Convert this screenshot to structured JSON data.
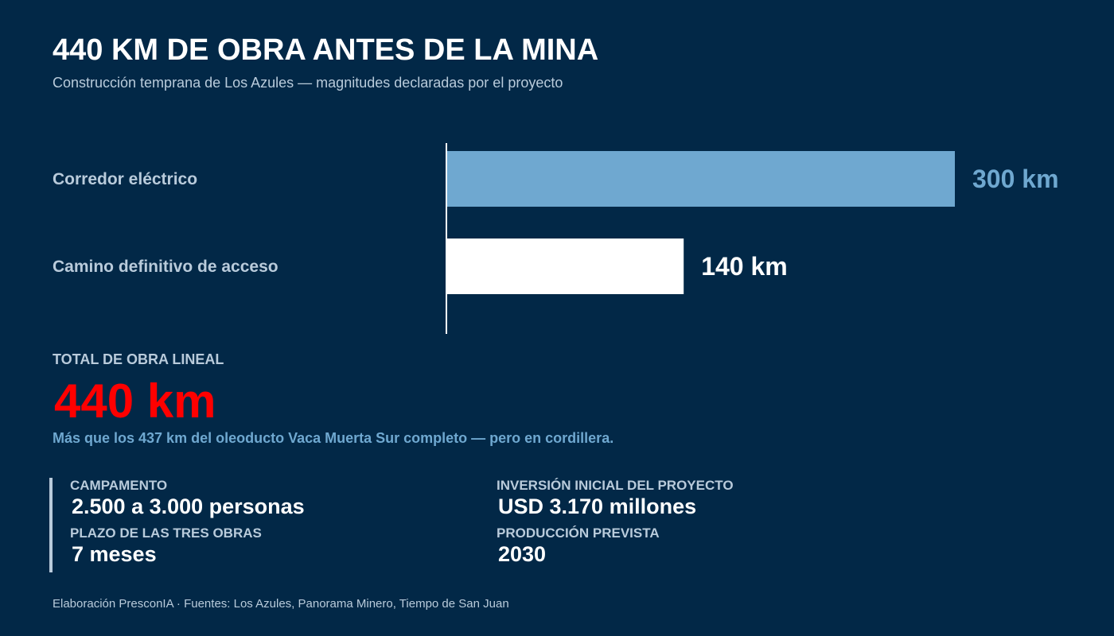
{
  "title": "440 KM DE OBRA ANTES DE LA MINA",
  "subtitle": "Construcción temprana de Los Azules — magnitudes declaradas por el proyecto",
  "chart_data": {
    "type": "bar",
    "orientation": "horizontal",
    "categories": [
      "Corredor eléctrico",
      "Camino definitivo de acceso"
    ],
    "values": [
      300,
      140
    ],
    "value_labels": [
      "300 km",
      "140 km"
    ],
    "colors": [
      "#6fa8d0",
      "#ffffff"
    ],
    "xlim": [
      0,
      300
    ],
    "grid": false,
    "legend": "none"
  },
  "total": {
    "label": "TOTAL DE OBRA LINEAL",
    "value": "440 km",
    "note": "Más que los 437 km del oleoducto Vaca Muerta Sur completo — pero en cordillera."
  },
  "facts": [
    {
      "label": "CAMPAMENTO",
      "value": "2.500 a 3.000 personas"
    },
    {
      "label": "INVERSIÓN INICIAL DEL PROYECTO",
      "value": "USD 3.170 millones"
    },
    {
      "label": "PLAZO DE LAS TRES OBRAS",
      "value": "7 meses"
    },
    {
      "label": "PRODUCCIÓN PREVISTA",
      "value": "2030"
    }
  ],
  "footer": "Elaboración PresconIA · Fuentes: Los Azules, Panorama Minero, Tiempo de San Juan",
  "colors": {
    "background": "#022847",
    "accent": "#ff0000",
    "muted": "#b9cbdb",
    "bar_primary": "#6fa8d0",
    "bar_secondary": "#ffffff"
  }
}
